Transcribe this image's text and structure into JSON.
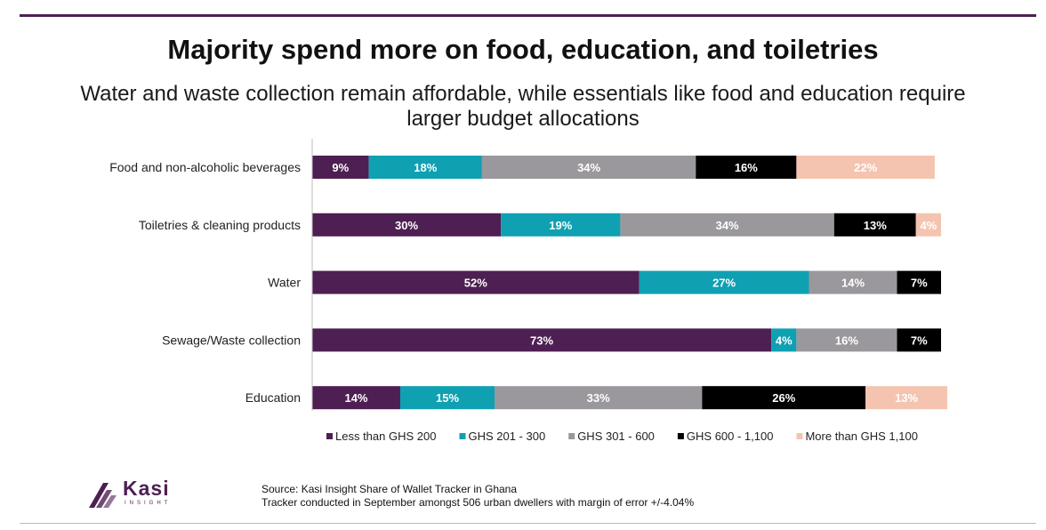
{
  "chart_data": {
    "type": "bar",
    "orientation": "horizontal",
    "stacked": true,
    "title": "Majority spend more on food, education, and toiletries",
    "subtitle": "Water and waste collection remain affordable, while essentials like food and education require larger budget allocations",
    "categories": [
      "Food and non-alcoholic beverages",
      "Toiletries & cleaning products",
      "Water",
      "Sewage/Waste collection",
      "Education"
    ],
    "series": [
      {
        "name": "Less than GHS 200",
        "color": "#4e1f52",
        "label_color": "#ffffff",
        "values": [
          9,
          30,
          52,
          73,
          14
        ]
      },
      {
        "name": "GHS 201 - 300",
        "color": "#0fa0b2",
        "label_color": "#ffffff",
        "values": [
          18,
          19,
          27,
          4,
          15
        ]
      },
      {
        "name": "GHS 301 - 600",
        "color": "#9a989c",
        "label_color": "#ffffff",
        "values": [
          34,
          34,
          14,
          16,
          33
        ]
      },
      {
        "name": "GHS 600 - 1,100",
        "color": "#000000",
        "label_color": "#ffffff",
        "values": [
          16,
          13,
          7,
          7,
          26
        ]
      },
      {
        "name": "More than GHS 1,100",
        "color": "#f5c4b0",
        "label_color": "#ffffff",
        "values": [
          22,
          4,
          null,
          null,
          13
        ]
      }
    ],
    "value_suffix": "%",
    "xlim": [
      0,
      100
    ],
    "legend": "bottom"
  },
  "source": {
    "line1": "Source: Kasi Insight Share of Wallet Tracker in Ghana",
    "line2": "Tracker conducted in September amongst 506 urban dwellers with margin of error +/-4.04%"
  },
  "logo": {
    "name": "Kasi",
    "tagline": "INSIGHT"
  },
  "colors": {
    "brand": "#4e1f52",
    "rule": "#bdbdbd"
  }
}
